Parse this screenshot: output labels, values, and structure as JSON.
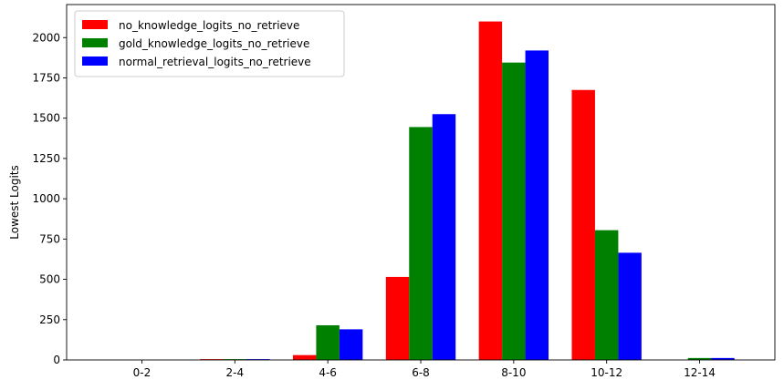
{
  "chart_data": {
    "type": "bar",
    "title": "",
    "xlabel": "",
    "ylabel": "Lowest Logits",
    "categories": [
      "0-2",
      "2-4",
      "4-6",
      "6-8",
      "8-10",
      "10-12",
      "12-14"
    ],
    "ylim": [
      0,
      2205
    ],
    "yticks": [
      0,
      250,
      500,
      750,
      1000,
      1250,
      1500,
      1750,
      2000
    ],
    "grid": false,
    "legend_position": "top-left",
    "series": [
      {
        "name": "no_knowledge_logits_no_retrieve",
        "color": "#ff0000",
        "values": [
          0,
          5,
          30,
          515,
          2100,
          1675,
          0
        ]
      },
      {
        "name": "gold_knowledge_logits_no_retrieve",
        "color": "#008000",
        "values": [
          0,
          5,
          215,
          1445,
          1845,
          805,
          12
        ]
      },
      {
        "name": "normal_retrieval_logits_no_retrieve",
        "color": "#0000ff",
        "values": [
          0,
          5,
          190,
          1525,
          1920,
          665,
          12
        ]
      }
    ]
  }
}
